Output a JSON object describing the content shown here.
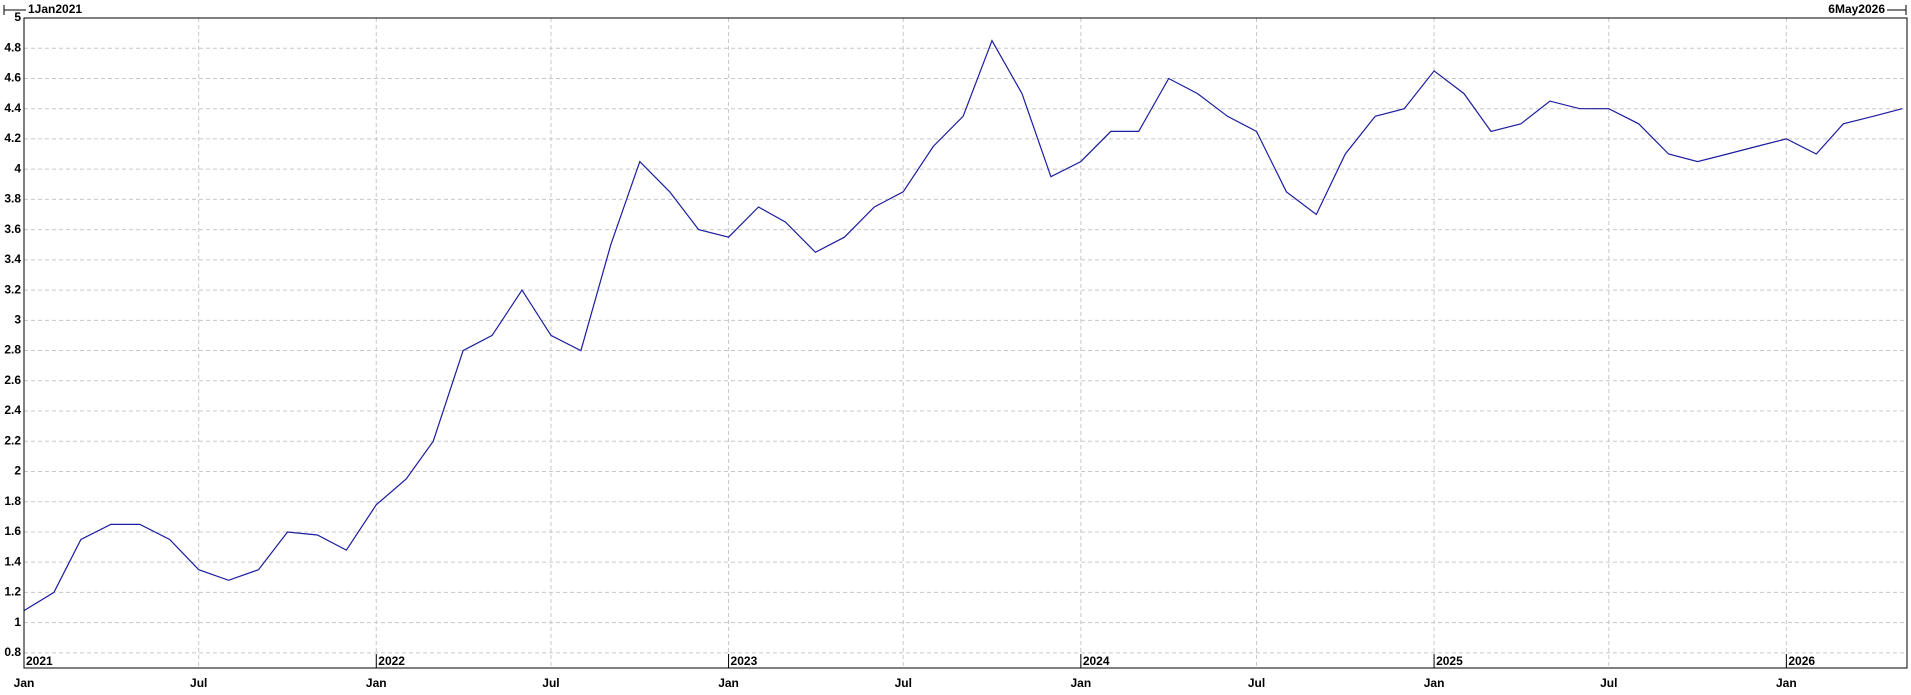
{
  "chart_data": {
    "type": "line",
    "range_labels": [
      "1Jan2021",
      "6May2026"
    ],
    "x": [
      "2021-01",
      "2021-02",
      "2021-03",
      "2021-04",
      "2021-05",
      "2021-06",
      "2021-07",
      "2021-08",
      "2021-09",
      "2021-10",
      "2021-11",
      "2021-12",
      "2022-01",
      "2022-02",
      "2022-03",
      "2022-04",
      "2022-05",
      "2022-06",
      "2022-07",
      "2022-08",
      "2022-09",
      "2022-10",
      "2022-11",
      "2022-12",
      "2023-01",
      "2023-02",
      "2023-03",
      "2023-04",
      "2023-05",
      "2023-06",
      "2023-07",
      "2023-08",
      "2023-09",
      "2023-10",
      "2023-11",
      "2023-12",
      "2024-01",
      "2024-02",
      "2024-03",
      "2024-04",
      "2024-05",
      "2024-06",
      "2024-07",
      "2024-08",
      "2024-09",
      "2024-10",
      "2024-11",
      "2024-12",
      "2025-01",
      "2025-02",
      "2025-03",
      "2025-04",
      "2025-05",
      "2025-06",
      "2025-07",
      "2025-08",
      "2025-09",
      "2025-10",
      "2025-11",
      "2025-12",
      "2026-01",
      "2026-02",
      "2026-03",
      "2026-04",
      "2026-05"
    ],
    "series": [
      {
        "color": "#1c1ca0",
        "values": [
          1.08,
          1.2,
          1.55,
          1.65,
          1.65,
          1.55,
          1.35,
          1.28,
          1.35,
          1.6,
          1.58,
          1.48,
          1.78,
          1.95,
          2.2,
          2.8,
          2.9,
          3.2,
          2.9,
          2.8,
          3.5,
          4.05,
          3.85,
          3.6,
          3.55,
          3.75,
          3.65,
          3.45,
          3.55,
          3.75,
          3.85,
          4.15,
          4.35,
          4.85,
          4.5,
          3.95,
          4.05,
          4.25,
          4.25,
          4.6,
          4.5,
          4.35,
          4.25,
          3.85,
          3.7,
          4.1,
          4.35,
          4.4,
          4.65,
          4.5,
          4.25,
          4.3,
          4.45,
          4.4,
          4.4,
          4.3,
          4.1,
          4.05,
          4.1,
          4.15,
          4.2,
          4.1,
          4.3,
          4.35,
          4.4
        ]
      }
    ],
    "xlim": [
      "2021-01-01",
      "2026-05-06"
    ],
    "ylim": [
      0.7,
      5
    ],
    "yticks": [
      0.8,
      1,
      1.2,
      1.4,
      1.6,
      1.8,
      2,
      2.2,
      2.4,
      2.6,
      2.8,
      3,
      3.2,
      3.4,
      3.6,
      3.8,
      4,
      4.2,
      4.4,
      4.6,
      4.8,
      5
    ],
    "xticks": [
      {
        "value": "2021-01",
        "label": "Jan"
      },
      {
        "value": "2021-07",
        "label": "Jul"
      },
      {
        "value": "2022-01",
        "label": "Jan"
      },
      {
        "value": "2022-07",
        "label": "Jul"
      },
      {
        "value": "2023-01",
        "label": "Jan"
      },
      {
        "value": "2023-07",
        "label": "Jul"
      },
      {
        "value": "2024-01",
        "label": "Jan"
      },
      {
        "value": "2024-07",
        "label": "Jul"
      },
      {
        "value": "2025-01",
        "label": "Jan"
      },
      {
        "value": "2025-07",
        "label": "Jul"
      },
      {
        "value": "2026-01",
        "label": "Jan"
      }
    ],
    "year_labels": [
      {
        "value": "2021-01",
        "label": "2021"
      },
      {
        "value": "2022-01",
        "label": "2022"
      },
      {
        "value": "2023-01",
        "label": "2023"
      },
      {
        "value": "2024-01",
        "label": "2024"
      },
      {
        "value": "2025-01",
        "label": "2025"
      },
      {
        "value": "2026-01",
        "label": "2026"
      }
    ],
    "grid": true
  }
}
